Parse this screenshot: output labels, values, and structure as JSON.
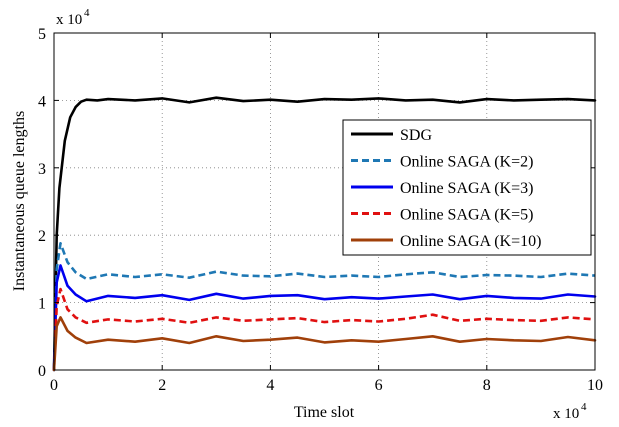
{
  "chart_data": {
    "type": "line",
    "xlabel": "Time slot",
    "ylabel": "Instantaneous queue lengths",
    "x_multiplier": "x 10",
    "x_multiplier_exp": "4",
    "y_multiplier": "x 10",
    "y_multiplier_exp": "4",
    "xlim": [
      0,
      100000
    ],
    "ylim": [
      0,
      50000
    ],
    "x_ticks": [
      0,
      20000,
      40000,
      60000,
      80000,
      100000
    ],
    "x_tick_labels": [
      "0",
      "2",
      "4",
      "6",
      "8",
      "10"
    ],
    "y_ticks": [
      0,
      10000,
      20000,
      30000,
      40000,
      50000
    ],
    "y_tick_labels": [
      "0",
      "1",
      "2",
      "3",
      "4",
      "5"
    ],
    "grid": true,
    "legend_position": "right, middle",
    "series": [
      {
        "name": "SDG",
        "color": "#000000",
        "dashed": false,
        "x": [
          0,
          500,
          1000,
          2000,
          3000,
          4000,
          5000,
          6000,
          8000,
          10000,
          15000,
          20000,
          25000,
          30000,
          35000,
          40000,
          45000,
          50000,
          55000,
          60000,
          65000,
          70000,
          75000,
          80000,
          85000,
          90000,
          95000,
          100000
        ],
        "y": [
          0,
          20000,
          27000,
          34000,
          37500,
          39000,
          39800,
          40100,
          40000,
          40200,
          40000,
          40300,
          39700,
          40400,
          39900,
          40100,
          39800,
          40200,
          40100,
          40300,
          40000,
          40100,
          39700,
          40200,
          40000,
          40100,
          40200,
          40000
        ]
      },
      {
        "name": "Online SAGA (K=2)",
        "color": "#1f78b4",
        "dashed": true,
        "x": [
          0,
          500,
          1200,
          2500,
          4000,
          6000,
          10000,
          15000,
          20000,
          25000,
          30000,
          35000,
          40000,
          45000,
          50000,
          55000,
          60000,
          65000,
          70000,
          75000,
          80000,
          85000,
          90000,
          95000,
          100000
        ],
        "y": [
          0,
          15000,
          18800,
          16000,
          14500,
          13500,
          14200,
          13800,
          14200,
          13700,
          14600,
          14000,
          13900,
          14300,
          13800,
          14000,
          13800,
          14200,
          14500,
          13800,
          14100,
          14000,
          13800,
          14300,
          14000
        ]
      },
      {
        "name": "Online SAGA (K=3)",
        "color": "#0000ee",
        "dashed": false,
        "x": [
          0,
          500,
          1200,
          2500,
          4000,
          6000,
          10000,
          15000,
          20000,
          25000,
          30000,
          35000,
          40000,
          45000,
          50000,
          55000,
          60000,
          65000,
          70000,
          75000,
          80000,
          85000,
          90000,
          95000,
          100000
        ],
        "y": [
          0,
          13000,
          15500,
          12500,
          11200,
          10200,
          11000,
          10700,
          11100,
          10400,
          11300,
          10600,
          11000,
          11100,
          10500,
          10800,
          10600,
          10900,
          11200,
          10500,
          11000,
          10700,
          10600,
          11200,
          10900
        ]
      },
      {
        "name": "Online SAGA (K=5)",
        "color": "#e01010",
        "dashed": true,
        "x": [
          0,
          500,
          1200,
          2500,
          4000,
          6000,
          10000,
          15000,
          20000,
          25000,
          30000,
          35000,
          40000,
          45000,
          50000,
          55000,
          60000,
          65000,
          70000,
          75000,
          80000,
          85000,
          90000,
          95000,
          100000
        ],
        "y": [
          0,
          9500,
          12000,
          9000,
          7800,
          7000,
          7500,
          7200,
          7600,
          7000,
          7800,
          7300,
          7500,
          7700,
          7100,
          7400,
          7200,
          7600,
          8200,
          7300,
          7600,
          7400,
          7300,
          7800,
          7500
        ]
      },
      {
        "name": "Online SAGA (K=10)",
        "color": "#a0400a",
        "dashed": false,
        "x": [
          0,
          500,
          1200,
          2500,
          4000,
          6000,
          10000,
          15000,
          20000,
          25000,
          30000,
          35000,
          40000,
          45000,
          50000,
          55000,
          60000,
          65000,
          70000,
          75000,
          80000,
          85000,
          90000,
          95000,
          100000
        ],
        "y": [
          0,
          6500,
          7800,
          5800,
          4800,
          4000,
          4500,
          4200,
          4700,
          4000,
          5000,
          4300,
          4500,
          4800,
          4100,
          4400,
          4200,
          4600,
          5000,
          4200,
          4600,
          4400,
          4300,
          4900,
          4400
        ]
      }
    ]
  }
}
